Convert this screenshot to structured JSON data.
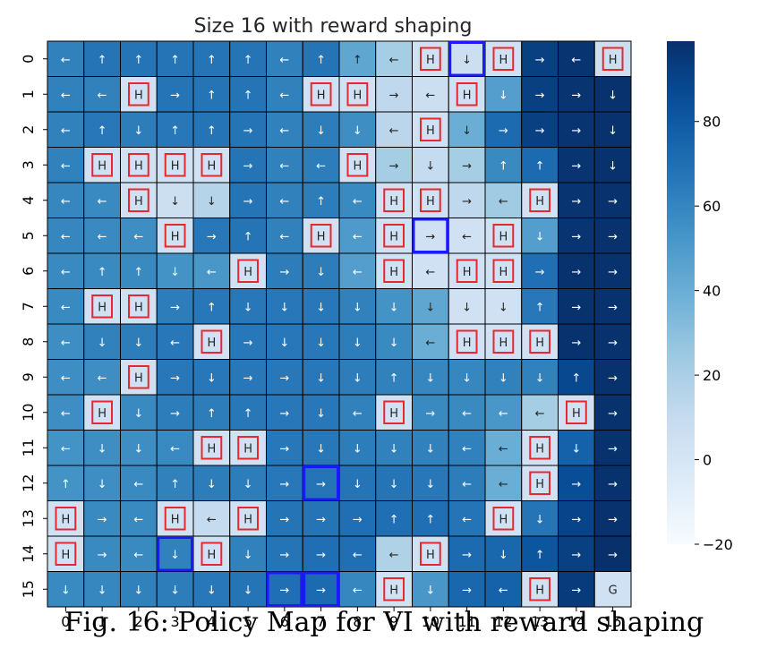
{
  "caption": "Fig. 16: Policy Map for VI with reward shaping",
  "chart_data": {
    "type": "heatmap",
    "title": "Size 16 with reward shaping",
    "xlabel": "",
    "ylabel": "",
    "x_ticks": [
      "0",
      "1",
      "2",
      "3",
      "4",
      "5",
      "6",
      "7",
      "8",
      "9",
      "10",
      "11",
      "12",
      "13",
      "14",
      "15"
    ],
    "y_ticks": [
      "0",
      "1",
      "2",
      "3",
      "4",
      "5",
      "6",
      "7",
      "8",
      "9",
      "10",
      "11",
      "12",
      "13",
      "14",
      "15"
    ],
    "colormap": "Blues",
    "vmin": -20,
    "vmax": 99,
    "colorbar_ticks": [
      -20,
      0,
      20,
      40,
      60,
      80
    ],
    "colorbar_tick_labels": [
      "−20",
      "0",
      "20",
      "40",
      "60",
      "80"
    ],
    "cell_border_color": "#000000",
    "hole_border_color": "#e8282d",
    "highlight_border_color": "#1a1aff",
    "policy": [
      [
        "←",
        "↑",
        "↑",
        "↑",
        "↑",
        "↑",
        "←",
        "↑",
        "↑",
        "←",
        "H",
        "↓",
        "H",
        "→",
        "←",
        "H"
      ],
      [
        "←",
        "←",
        "H",
        "→",
        "↑",
        "↑",
        "←",
        "H",
        "H",
        "→",
        "←",
        "H",
        "↓",
        "→",
        "→",
        "↓"
      ],
      [
        "←",
        "↑",
        "↓",
        "↑",
        "↑",
        "→",
        "←",
        "↓",
        "↓",
        "←",
        "H",
        "↓",
        "→",
        "→",
        "→",
        "↓"
      ],
      [
        "←",
        "H",
        "H",
        "H",
        "H",
        "→",
        "←",
        "←",
        "H",
        "→",
        "↓",
        "→",
        "↑",
        "↑",
        "→",
        "↓"
      ],
      [
        "←",
        "←",
        "H",
        "↓",
        "↓",
        "→",
        "←",
        "↑",
        "←",
        "H",
        "H",
        "→",
        "←",
        "H",
        "→",
        "→"
      ],
      [
        "←",
        "←",
        "←",
        "H",
        "→",
        "↑",
        "←",
        "H",
        "←",
        "H",
        "→",
        "←",
        "H",
        "↓",
        "→",
        "→"
      ],
      [
        "←",
        "↑",
        "↑",
        "↓",
        "←",
        "H",
        "→",
        "↓",
        "←",
        "H",
        "←",
        "H",
        "H",
        "→",
        "→",
        "→"
      ],
      [
        "←",
        "H",
        "H",
        "→",
        "↑",
        "↓",
        "↓",
        "↓",
        "↓",
        "↓",
        "↓",
        "↓",
        "↓",
        "↑",
        "→",
        "→"
      ],
      [
        "←",
        "↓",
        "↓",
        "←",
        "H",
        "→",
        "↓",
        "↓",
        "↓",
        "↓",
        "←",
        "H",
        "H",
        "H",
        "→",
        "→"
      ],
      [
        "←",
        "←",
        "H",
        "→",
        "↓",
        "→",
        "→",
        "↓",
        "↓",
        "↑",
        "↓",
        "↓",
        "↓",
        "↓",
        "↑",
        "→"
      ],
      [
        "←",
        "H",
        "↓",
        "→",
        "↑",
        "↑",
        "→",
        "↓",
        "←",
        "H",
        "→",
        "←",
        "←",
        "←",
        "H",
        "→"
      ],
      [
        "←",
        "↓",
        "↓",
        "←",
        "H",
        "H",
        "→",
        "↓",
        "↓",
        "↓",
        "↓",
        "←",
        "←",
        "H",
        "↓",
        "→"
      ],
      [
        "↑",
        "↓",
        "←",
        "↑",
        "↓",
        "↓",
        "→",
        "→",
        "↓",
        "↓",
        "↓",
        "←",
        "←",
        "H",
        "→",
        "→"
      ],
      [
        "H",
        "→",
        "←",
        "H",
        "←",
        "H",
        "→",
        "→",
        "→",
        "↑",
        "↑",
        "←",
        "H",
        "↓",
        "→",
        "→"
      ],
      [
        "H",
        "→",
        "←",
        "↓",
        "H",
        "↓",
        "→",
        "→",
        "←",
        "←",
        "H",
        "→",
        "↓",
        "↑",
        "→",
        "→"
      ],
      [
        "↓",
        "↓",
        "↓",
        "↓",
        "↓",
        "↓",
        "→",
        "→",
        "←",
        "H",
        "↓",
        "→",
        "←",
        "H",
        "→",
        "G"
      ]
    ],
    "values": [
      [
        62,
        68,
        68,
        68,
        68,
        68,
        62,
        68,
        44,
        22,
        4,
        6,
        4,
        92,
        97,
        6
      ],
      [
        62,
        62,
        4,
        68,
        68,
        68,
        62,
        4,
        4,
        12,
        6,
        4,
        48,
        92,
        97,
        98
      ],
      [
        62,
        66,
        64,
        66,
        68,
        68,
        62,
        64,
        56,
        14,
        4,
        40,
        72,
        92,
        97,
        98
      ],
      [
        62,
        4,
        4,
        4,
        4,
        68,
        62,
        64,
        4,
        22,
        10,
        22,
        58,
        72,
        97,
        98
      ],
      [
        60,
        58,
        4,
        6,
        16,
        68,
        62,
        64,
        58,
        4,
        4,
        12,
        24,
        4,
        97,
        98
      ],
      [
        60,
        58,
        56,
        4,
        66,
        68,
        62,
        4,
        50,
        4,
        4,
        4,
        4,
        48,
        97,
        98
      ],
      [
        58,
        58,
        58,
        54,
        52,
        4,
        64,
        64,
        48,
        4,
        4,
        4,
        4,
        70,
        98,
        98
      ],
      [
        58,
        4,
        4,
        64,
        66,
        66,
        66,
        66,
        62,
        54,
        44,
        4,
        4,
        66,
        98,
        98
      ],
      [
        56,
        62,
        64,
        66,
        4,
        66,
        66,
        66,
        64,
        58,
        40,
        4,
        4,
        4,
        98,
        98
      ],
      [
        56,
        56,
        4,
        66,
        66,
        66,
        66,
        66,
        64,
        62,
        60,
        60,
        62,
        62,
        88,
        98
      ],
      [
        56,
        4,
        58,
        64,
        64,
        66,
        66,
        66,
        62,
        4,
        58,
        58,
        52,
        22,
        4,
        98
      ],
      [
        54,
        56,
        56,
        58,
        4,
        4,
        66,
        66,
        64,
        62,
        62,
        62,
        40,
        4,
        76,
        98
      ],
      [
        54,
        56,
        58,
        62,
        64,
        64,
        66,
        68,
        68,
        68,
        66,
        64,
        40,
        4,
        86,
        98
      ],
      [
        4,
        58,
        58,
        4,
        10,
        4,
        68,
        68,
        70,
        70,
        70,
        68,
        4,
        68,
        90,
        98
      ],
      [
        4,
        58,
        58,
        62,
        4,
        62,
        68,
        70,
        70,
        18,
        4,
        72,
        74,
        82,
        92,
        99
      ],
      [
        58,
        60,
        62,
        64,
        66,
        68,
        70,
        72,
        60,
        4,
        52,
        74,
        76,
        4,
        94,
        4
      ]
    ],
    "highlighted_cells": [
      [
        0,
        11
      ],
      [
        5,
        10
      ],
      [
        12,
        7
      ],
      [
        14,
        3
      ],
      [
        15,
        6
      ],
      [
        15,
        7
      ]
    ]
  }
}
